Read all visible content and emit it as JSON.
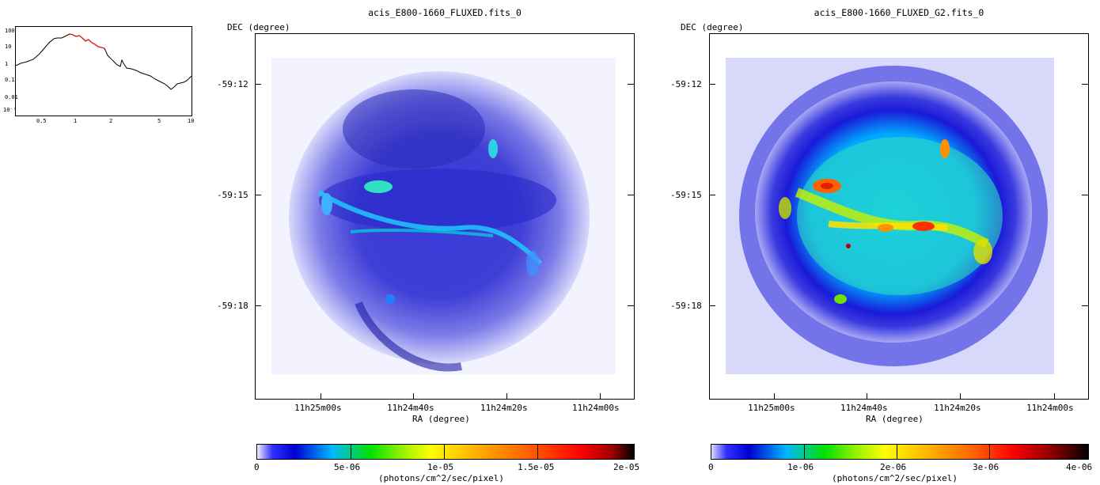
{
  "spectrum": {
    "x_ticks": [
      "0.5",
      "1",
      "2",
      "5",
      "10"
    ],
    "y_ticks": [
      "100",
      "10",
      "1",
      "0.1",
      "0.01",
      "10⁻³"
    ]
  },
  "panels": [
    {
      "title": "acis_E800-1660_FLUXED.fits_0",
      "dec_label": "DEC (degree)",
      "ra_label": "RA (degree)",
      "y_ticks": [
        "-59:12",
        "-59:15",
        "-59:18"
      ],
      "x_ticks": [
        "11h25m00s",
        "11h24m40s",
        "11h24m20s",
        "11h24m00s"
      ],
      "colorbar": {
        "ticks": [
          "0",
          "5e-06",
          "1e-05",
          "1.5e-05",
          "2e-05"
        ],
        "unit": "(photons/cm^2/sec/pixel)"
      }
    },
    {
      "title": "acis_E800-1660_FLUXED_G2.fits_0",
      "dec_label": "DEC (degree)",
      "ra_label": "RA (degree)",
      "y_ticks": [
        "-59:12",
        "-59:15",
        "-59:18"
      ],
      "x_ticks": [
        "11h25m00s",
        "11h24m40s",
        "11h24m20s",
        "11h24m00s"
      ],
      "colorbar": {
        "ticks": [
          "0",
          "1e-06",
          "2e-06",
          "3e-06",
          "4e-06"
        ],
        "unit": "(photons/cm^2/sec/pixel)"
      }
    }
  ],
  "colors": {
    "colormap": [
      "#ffffff",
      "#e6e6ff",
      "#2020ff",
      "#0000c0",
      "#00c8ff",
      "#00e000",
      "#ffff00",
      "#ff9000",
      "#ff0000",
      "#000000"
    ],
    "spectrum_line": "#000000",
    "spectrum_band": "#d01010"
  }
}
